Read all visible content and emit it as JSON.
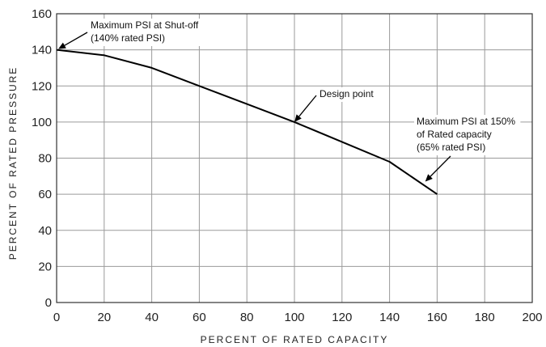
{
  "chart_data": {
    "type": "line",
    "title": "",
    "xlabel": "PERCENT OF RATED CAPACITY",
    "ylabel": "PERCENT OF RATED PRESSURE",
    "xlim": [
      0,
      200
    ],
    "ylim": [
      0,
      160
    ],
    "x_ticks": [
      "0",
      "20",
      "40",
      "60",
      "80",
      "100",
      "120",
      "140",
      "160",
      "180",
      "200"
    ],
    "y_ticks": [
      "0",
      "20",
      "40",
      "60",
      "80",
      "100",
      "120",
      "140",
      "160"
    ],
    "grid": true,
    "series": [
      {
        "x": [
          0,
          20,
          40,
          60,
          80,
          100,
          120,
          140,
          160
        ],
        "y": [
          140,
          137,
          130,
          120,
          110,
          100,
          89,
          78,
          60
        ]
      }
    ],
    "annotations": [
      {
        "id": "shutoff",
        "lines": [
          "Maximum PSI at Shut-off",
          "(140% rated PSI)"
        ],
        "point": [
          0,
          140
        ]
      },
      {
        "id": "design",
        "lines": [
          "Design point"
        ],
        "point": [
          100,
          100
        ]
      },
      {
        "id": "max150",
        "lines": [
          "Maximum PSI at 150%",
          "of Rated capacity",
          "(65% rated PSI)"
        ],
        "point": [
          155,
          67
        ]
      }
    ]
  }
}
